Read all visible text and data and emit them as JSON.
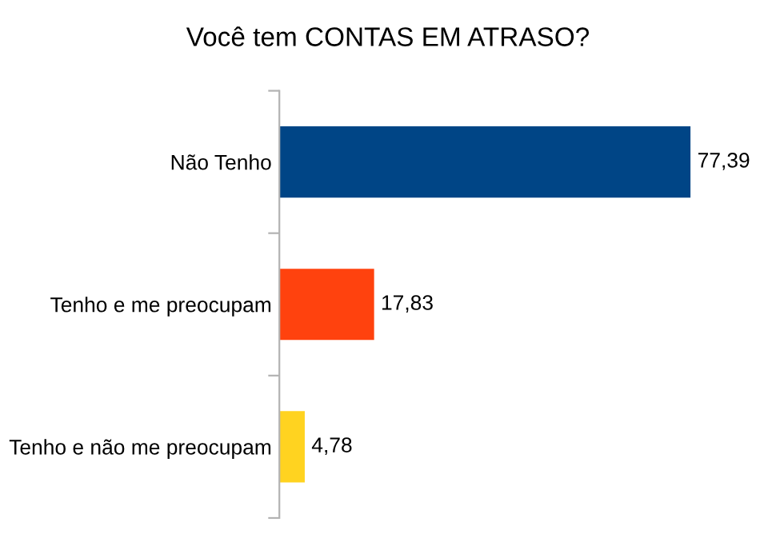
{
  "chart_data": {
    "type": "bar",
    "orientation": "horizontal",
    "title": "Você tem CONTAS EM ATRASO?",
    "categories": [
      "Não Tenho",
      "Tenho e me preocupam",
      "Tenho e não me preocupam"
    ],
    "values": [
      77.39,
      17.83,
      4.78
    ],
    "value_labels": [
      "77,39",
      "17,83",
      "4,78"
    ],
    "colors": [
      "#004586",
      "#ff420e",
      "#ffd320"
    ]
  }
}
